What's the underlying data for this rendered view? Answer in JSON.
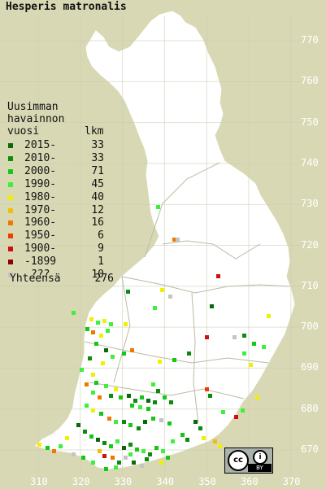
{
  "title": "Hesperis matronalis",
  "legend": {
    "heading": [
      "Uusimman",
      "havainnon",
      "vuosi"
    ],
    "count_heading": "lkm",
    "rows": [
      {
        "label": "2015-",
        "count": "33",
        "color": "#0a6a0a"
      },
      {
        "label": "2010-",
        "count": "33",
        "color": "#0b8c0b"
      },
      {
        "label": "2000-",
        "count": "71",
        "color": "#14c814"
      },
      {
        "label": "1990-",
        "count": "45",
        "color": "#3cf03c"
      },
      {
        "label": "1980-",
        "count": "40",
        "color": "#f0f000"
      },
      {
        "label": "1970-",
        "count": "12",
        "color": "#f0c000"
      },
      {
        "label": "1960-",
        "count": "16",
        "color": "#f07800"
      },
      {
        "label": "1950-",
        "count": "6",
        "color": "#f03c00"
      },
      {
        "label": "1900-",
        "count": "9",
        "color": "#d01010"
      },
      {
        "label": "-1899",
        "count": "1",
        "color": "#8b0000"
      },
      {
        "label": "???",
        "count": "10",
        "color": "#c4c4c4"
      }
    ],
    "total_label": "Yhteensä",
    "total_count": "276"
  },
  "grid": {
    "y_labels": [
      "770",
      "760",
      "750",
      "740",
      "730",
      "720",
      "710",
      "700",
      "690",
      "680",
      "670"
    ],
    "x_labels": [
      "310",
      "320",
      "330",
      "340",
      "350",
      "360",
      "370"
    ]
  },
  "license": {
    "cc": "cc",
    "attribution": "i",
    "by": "BY"
  }
}
